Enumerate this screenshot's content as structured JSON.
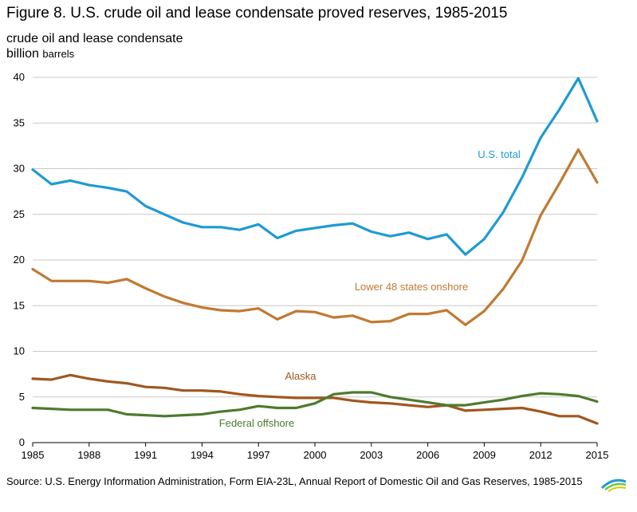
{
  "title": "Figure 8. U.S. crude oil and lease condensate proved reserves, 1985-2015",
  "ylabel_line1": "crude oil and lease condensate",
  "ylabel_line2_big": "billion",
  "ylabel_line2_small": "barrels",
  "source": "Source: U.S. Energy Information Administration, Form EIA-23L, Annual Report of Domestic Oil and Gas Reserves, 1985-2015",
  "logo_text": "eia",
  "chart_data": {
    "type": "line",
    "x": [
      1985,
      1986,
      1987,
      1988,
      1989,
      1990,
      1991,
      1992,
      1993,
      1994,
      1995,
      1996,
      1997,
      1998,
      1999,
      2000,
      2001,
      2002,
      2003,
      2004,
      2005,
      2006,
      2007,
      2008,
      2009,
      2010,
      2011,
      2012,
      2013,
      2014,
      2015
    ],
    "xticks": [
      "1985",
      "1988",
      "1991",
      "1994",
      "1997",
      "2000",
      "2003",
      "2006",
      "2009",
      "2012",
      "2015"
    ],
    "yticks": [
      "0",
      "5",
      "10",
      "15",
      "20",
      "25",
      "30",
      "35",
      "40"
    ],
    "xlim": [
      1985,
      2015
    ],
    "ylim": [
      0,
      40
    ],
    "grid": "horizontal",
    "series": [
      {
        "name": "U.S. total",
        "color": "#1f9bd1",
        "values": [
          29.9,
          28.3,
          28.7,
          28.2,
          27.9,
          27.5,
          25.9,
          25.0,
          24.1,
          23.6,
          23.6,
          23.3,
          23.9,
          22.4,
          23.2,
          23.5,
          23.8,
          24.0,
          23.1,
          22.6,
          23.0,
          22.3,
          22.8,
          20.6,
          22.3,
          25.2,
          29.0,
          33.4,
          36.5,
          39.9,
          35.2
        ]
      },
      {
        "name": "Lower 48 states onshore",
        "color": "#c07a33",
        "values": [
          19.0,
          17.7,
          17.7,
          17.7,
          17.5,
          17.9,
          16.9,
          16.0,
          15.3,
          14.8,
          14.5,
          14.4,
          14.7,
          13.5,
          14.4,
          14.3,
          13.7,
          13.9,
          13.2,
          13.3,
          14.1,
          14.1,
          14.5,
          12.9,
          14.4,
          16.8,
          19.9,
          24.9,
          28.4,
          32.1,
          28.5
        ]
      },
      {
        "name": "Alaska",
        "color": "#a0571f",
        "values": [
          7.0,
          6.9,
          7.4,
          7.0,
          6.7,
          6.5,
          6.1,
          6.0,
          5.7,
          5.7,
          5.6,
          5.3,
          5.1,
          5.0,
          4.9,
          4.9,
          4.9,
          4.6,
          4.4,
          4.3,
          4.1,
          3.9,
          4.1,
          3.5,
          3.6,
          3.7,
          3.8,
          3.4,
          2.9,
          2.9,
          2.1
        ]
      },
      {
        "name": "Federal offshore",
        "color": "#4e7a2d",
        "values": [
          3.8,
          3.7,
          3.6,
          3.6,
          3.6,
          3.1,
          3.0,
          2.9,
          3.0,
          3.1,
          3.4,
          3.6,
          4.0,
          3.8,
          3.8,
          4.3,
          5.3,
          5.5,
          5.5,
          5.0,
          4.7,
          4.4,
          4.1,
          4.1,
          4.4,
          4.7,
          5.1,
          5.4,
          5.3,
          5.1,
          4.5
        ]
      }
    ]
  }
}
